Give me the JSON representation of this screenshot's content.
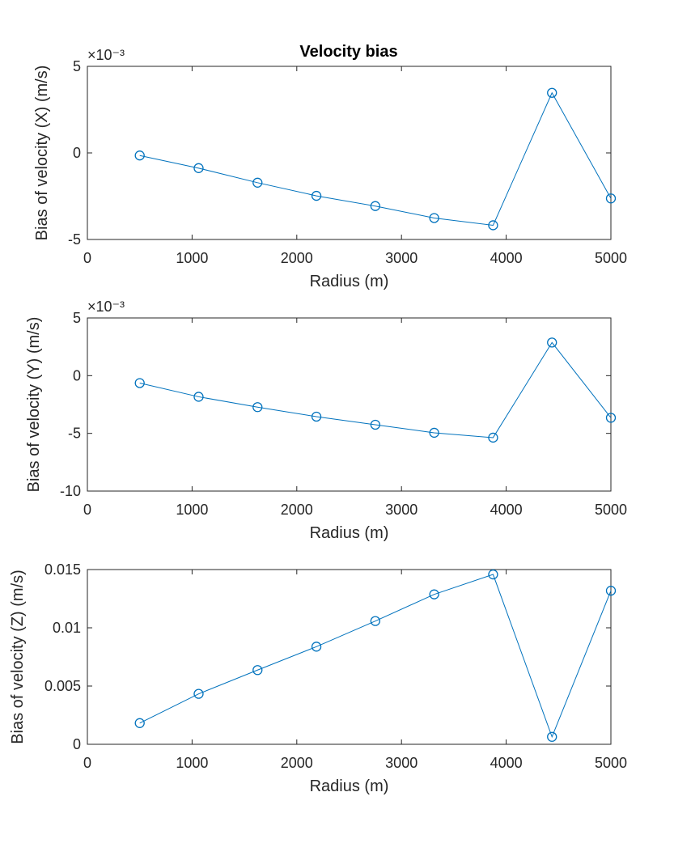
{
  "figure": {
    "title": "Velocity bias"
  },
  "colors": {
    "series": "#0072bd",
    "axes": "#262626",
    "background": "#ffffff"
  },
  "chart_data": [
    {
      "type": "line",
      "title": "Velocity bias",
      "xlabel": "Radius (m)",
      "ylabel": "Bias of velocity (X) (m/s)",
      "exponent_label": "×10⁻³",
      "y_scale_factor": 0.001,
      "xlim": [
        0,
        5000
      ],
      "ylim": [
        -0.005,
        0.005
      ],
      "xticks": [
        0,
        1000,
        2000,
        3000,
        4000,
        5000
      ],
      "xtick_labels": [
        "0",
        "1000",
        "2000",
        "3000",
        "4000",
        "5000"
      ],
      "yticks": [
        -0.005,
        0,
        0.005
      ],
      "ytick_labels": [
        "-5",
        "0",
        "5"
      ],
      "grid": false,
      "marker": "circle",
      "x": [
        500,
        1062.5,
        1625,
        2187.5,
        2750,
        3312.5,
        3875,
        4437.5,
        5000
      ],
      "series": [
        {
          "values": [
            -0.00015,
            -0.00088,
            -0.00172,
            -0.00248,
            -0.00307,
            -0.00376,
            -0.00418,
            0.00347,
            -0.00263
          ]
        }
      ]
    },
    {
      "type": "line",
      "title": "",
      "xlabel": "Radius (m)",
      "ylabel": "Bias of velocity (Y) (m/s)",
      "exponent_label": "×10⁻³",
      "y_scale_factor": 0.001,
      "xlim": [
        0,
        5000
      ],
      "ylim": [
        -0.01,
        0.005
      ],
      "xticks": [
        0,
        1000,
        2000,
        3000,
        4000,
        5000
      ],
      "xtick_labels": [
        "0",
        "1000",
        "2000",
        "3000",
        "4000",
        "5000"
      ],
      "yticks": [
        -0.01,
        -0.005,
        0,
        0.005
      ],
      "ytick_labels": [
        "-10",
        "-5",
        "0",
        "5"
      ],
      "grid": false,
      "marker": "circle",
      "x": [
        500,
        1062.5,
        1625,
        2187.5,
        2750,
        3312.5,
        3875,
        4437.5,
        5000
      ],
      "series": [
        {
          "values": [
            -0.00064,
            -0.00183,
            -0.00273,
            -0.00355,
            -0.00425,
            -0.00495,
            -0.00537,
            0.00287,
            -0.00365
          ]
        }
      ]
    },
    {
      "type": "line",
      "title": "",
      "xlabel": "Radius (m)",
      "ylabel": "Bias of velocity (Z) (m/s)",
      "exponent_label": "",
      "y_scale_factor": 1,
      "xlim": [
        0,
        5000
      ],
      "ylim": [
        0,
        0.015
      ],
      "xticks": [
        0,
        1000,
        2000,
        3000,
        4000,
        5000
      ],
      "xtick_labels": [
        "0",
        "1000",
        "2000",
        "3000",
        "4000",
        "5000"
      ],
      "yticks": [
        0,
        0.005,
        0.01,
        0.015
      ],
      "ytick_labels": [
        "0",
        "0.005",
        "0.01",
        "0.015"
      ],
      "grid": false,
      "marker": "circle",
      "x": [
        500,
        1062.5,
        1625,
        2187.5,
        2750,
        3312.5,
        3875,
        4437.5,
        5000
      ],
      "series": [
        {
          "values": [
            0.00182,
            0.00433,
            0.00637,
            0.00838,
            0.01058,
            0.01287,
            0.01458,
            0.00064,
            0.01318
          ]
        }
      ]
    }
  ]
}
